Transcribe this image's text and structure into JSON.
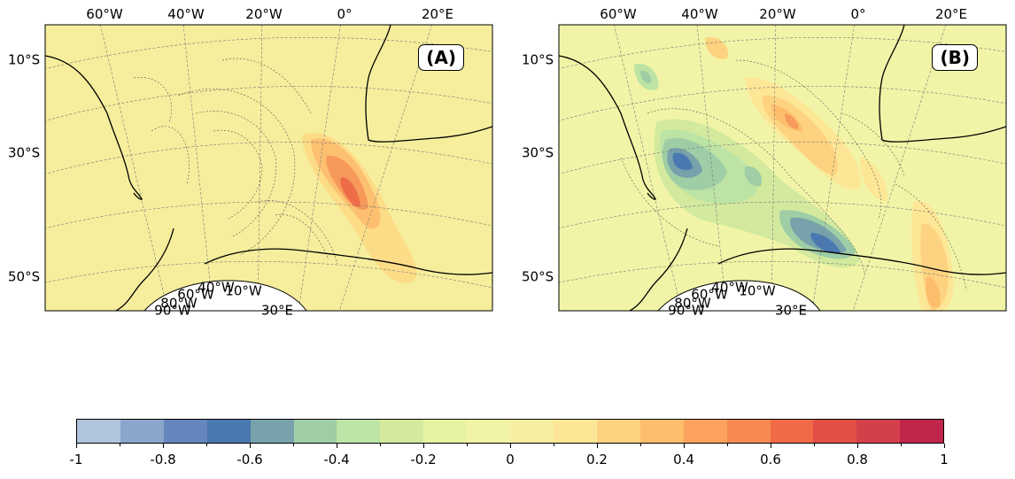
{
  "panels": [
    {
      "label": "(A)",
      "lon_labels_top": [
        "60°W",
        "40°W",
        "20°W",
        "0°",
        "20°E"
      ],
      "lat_labels_left": [
        "10°S",
        "30°S",
        "50°S"
      ],
      "lon_labels_bottom": [
        "40°W",
        "60°W",
        "10°W",
        "80°W",
        "90°W",
        "30°E"
      ]
    },
    {
      "label": "(B)",
      "lon_labels_top": [
        "60°W",
        "40°W",
        "20°W",
        "0°",
        "20°E"
      ],
      "lat_labels_left": [
        "10°S",
        "30°S",
        "50°S"
      ],
      "lon_labels_bottom": [
        "40°W",
        "60°W",
        "10°W",
        "80°W",
        "90°W",
        "30°E"
      ]
    }
  ],
  "colorbar": {
    "min": -1,
    "max": 1,
    "tick_labels": [
      "-1",
      "-0.8",
      "-0.6",
      "-0.4",
      "-0.2",
      "0",
      "0.2",
      "0.4",
      "0.6",
      "0.8",
      "1"
    ],
    "colors": [
      "#b0c4dc",
      "#8aa6cc",
      "#6486bc",
      "#4a78b0",
      "#77a2ac",
      "#9fcea6",
      "#bde4a4",
      "#d3ea9e",
      "#e6f4a2",
      "#f1f4a6",
      "#f6eea0",
      "#fde796",
      "#fdd280",
      "#fdbd6a",
      "#fca25e",
      "#f68a50",
      "#f06a46",
      "#e34f44",
      "#d3404a",
      "#c0264a"
    ]
  }
}
